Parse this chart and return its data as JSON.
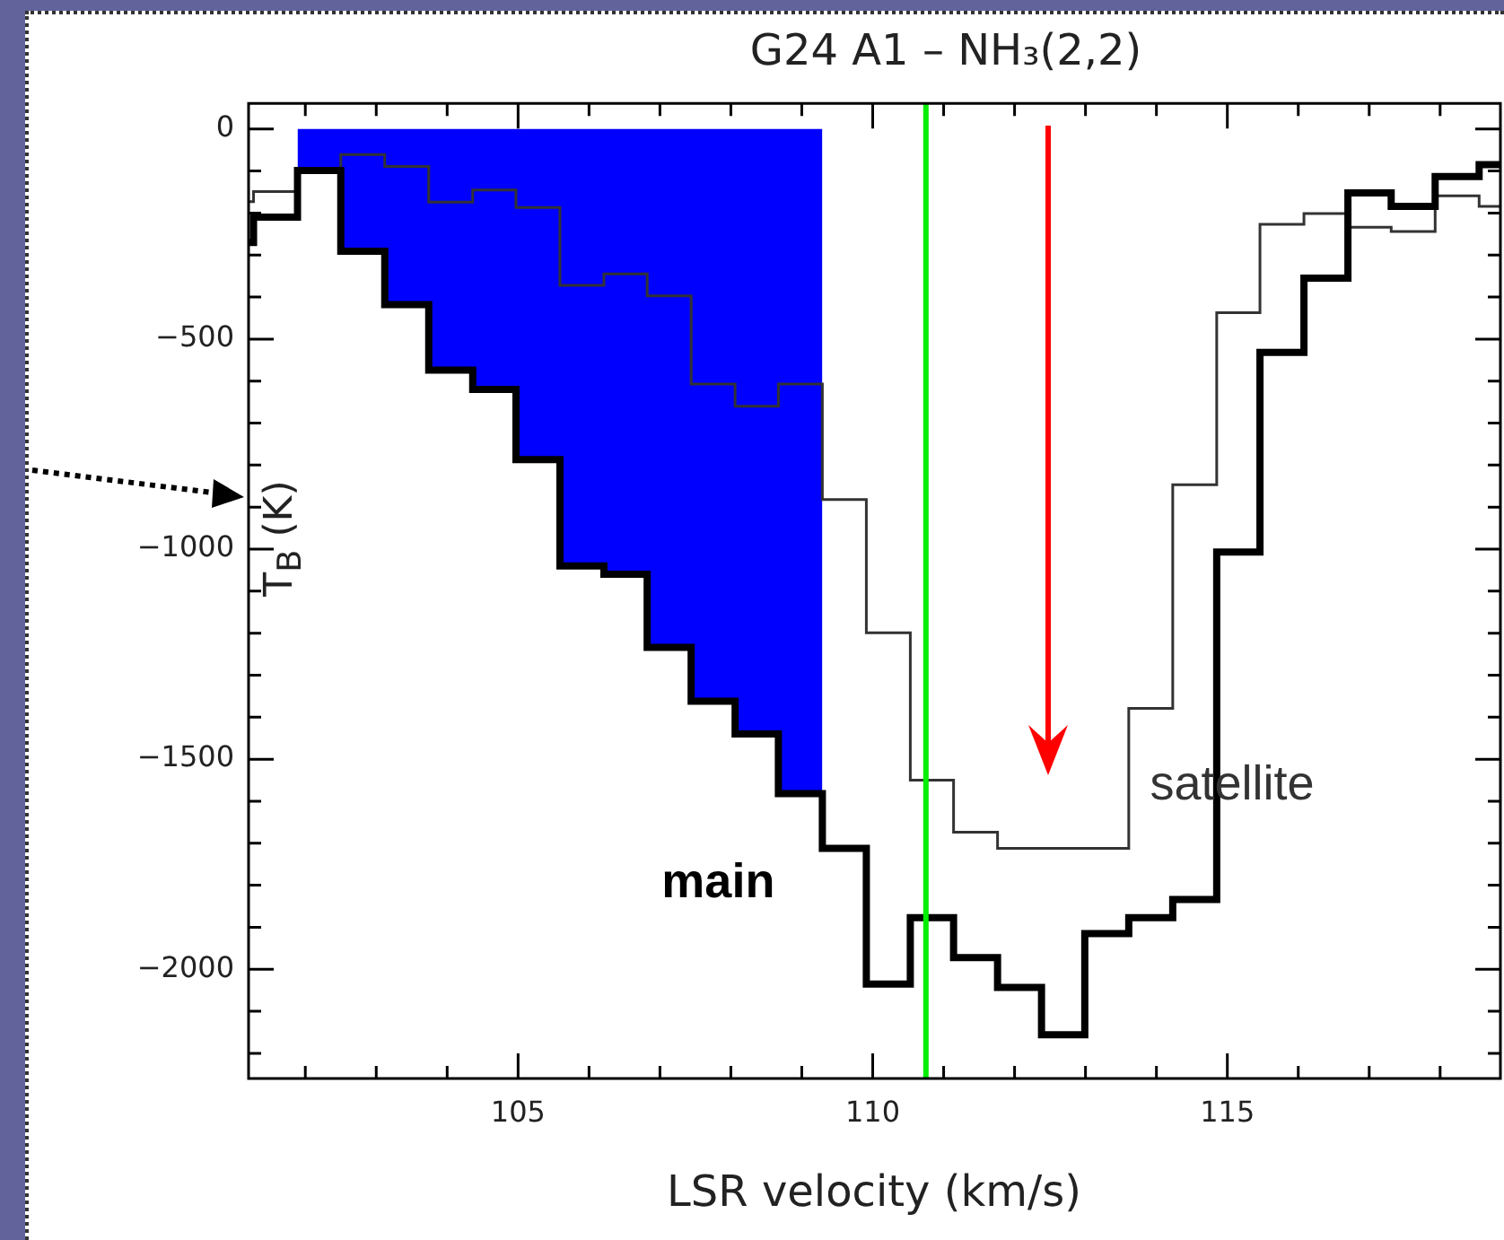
{
  "chart_data": {
    "type": "step",
    "title": "G24 A1 – NH₃(2,2)",
    "xlabel": "LSR velocity (km/s)",
    "ylabel": "T$_{B}$ (K)",
    "x": [
      101.2,
      101.27,
      101.89,
      102.5,
      103.12,
      103.74,
      104.36,
      104.97,
      105.59,
      106.21,
      106.82,
      107.44,
      108.06,
      108.67,
      109.29,
      109.91,
      110.53,
      111.14,
      111.76,
      112.38,
      112.99,
      113.61,
      114.23,
      114.85,
      115.46,
      116.08,
      116.7,
      117.31,
      117.93,
      118.55,
      118.85
    ],
    "series": [
      {
        "name": "main",
        "color": "#000000",
        "values": [
          -270,
          -210,
          -99,
          -291,
          -418,
          -574,
          -620,
          -787,
          -1040,
          -1060,
          -1234,
          -1362,
          -1440,
          -1582,
          -1712,
          -2035,
          -1877,
          -1972,
          -2043,
          -2156,
          -1915,
          -1877,
          -1834,
          -1007,
          -532,
          -355,
          -152,
          -184,
          -113,
          -85,
          -85
        ]
      },
      {
        "name": "satellite",
        "color": "#333333",
        "values": [
          -173,
          -149,
          -99,
          -61,
          -89,
          -174,
          -145,
          -187,
          -372,
          -345,
          -397,
          -607,
          -660,
          -607,
          -882,
          -1199,
          -1550,
          -1674,
          -1712,
          -1712,
          -1712,
          -1379,
          -847,
          -437,
          -227,
          -201,
          -234,
          -244,
          -159,
          -184,
          -184
        ]
      },
      {
        "type": "area",
        "color": "#0000ff",
        "x": [
          101.89,
          102.5,
          103.12,
          103.74,
          104.36,
          104.97,
          105.59,
          106.21,
          106.82,
          107.44,
          108.06,
          108.67,
          109.29
        ],
        "values": [
          -99,
          -291,
          -418,
          -574,
          -620,
          -787,
          -1040,
          -1060,
          -1234,
          -1362,
          -1440,
          -1582,
          -1582
        ]
      }
    ],
    "xlim": [
      101.2,
      118.85
    ],
    "xticks": [
      {
        "value": 102,
        "label": null
      },
      {
        "value": 103,
        "label": null
      },
      {
        "value": 104,
        "label": null
      },
      105,
      {
        "value": 106,
        "label": null
      },
      {
        "value": 107,
        "label": null
      },
      {
        "value": 108,
        "label": null
      },
      {
        "value": 109,
        "label": null
      },
      110,
      {
        "value": 111,
        "label": null
      },
      {
        "value": 112,
        "label": null
      },
      {
        "value": 113,
        "label": null
      },
      {
        "value": 114,
        "label": null
      },
      115,
      {
        "value": 116,
        "label": null
      },
      {
        "value": 117,
        "label": null
      },
      {
        "value": 118,
        "label": null
      }
    ],
    "ylim": [
      -2260,
      61
    ],
    "yticks": [
      {
        "value": -2200,
        "label": null
      },
      {
        "value": -2100,
        "label": null
      },
      {
        "value": -2000,
        "label": "−2000"
      },
      {
        "value": -1900,
        "label": null
      },
      {
        "value": -1800,
        "label": null
      },
      {
        "value": -1700,
        "label": null
      },
      {
        "value": -1600,
        "label": null
      },
      {
        "value": -1500,
        "label": "−1500"
      },
      {
        "value": -1400,
        "label": null
      },
      {
        "value": -1300,
        "label": null
      },
      {
        "value": -1200,
        "label": null
      },
      {
        "value": -1100,
        "label": null
      },
      {
        "value": -1000,
        "label": "−1000"
      },
      {
        "value": -900,
        "label": null
      },
      {
        "value": -800,
        "label": null
      },
      {
        "value": -700,
        "label": null
      },
      {
        "value": -600,
        "label": null
      },
      {
        "value": -500,
        "label": "−500"
      },
      {
        "value": -400,
        "label": null
      },
      {
        "value": -300,
        "label": null
      },
      {
        "value": -200,
        "label": null
      },
      {
        "value": -100,
        "label": null
      },
      0
    ],
    "ref_lines": [
      {
        "axis": "x",
        "value": 110.75,
        "color": "#00ee00"
      }
    ],
    "line_style": "solid",
    "marker": "none",
    "legend": false
  }
}
